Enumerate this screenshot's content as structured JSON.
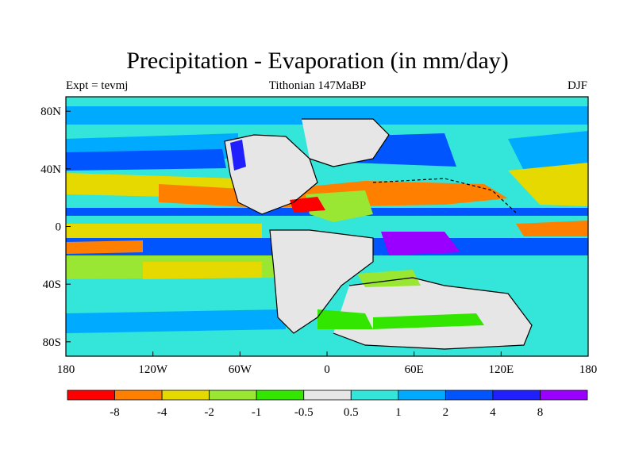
{
  "title": "Precipitation - Evaporation (in mm/day)",
  "left_label": "Expt = tevmj",
  "center_label": "Tithonian 147MaBP",
  "right_label": "DJF",
  "map": {
    "lon_range": [
      -180,
      180
    ],
    "lat_range": [
      -90,
      90
    ],
    "x_ticks": [
      {
        "lon": -180,
        "label": "180"
      },
      {
        "lon": -120,
        "label": "120W"
      },
      {
        "lon": -60,
        "label": "60W"
      },
      {
        "lon": 0,
        "label": "0"
      },
      {
        "lon": 60,
        "label": "60E"
      },
      {
        "lon": 120,
        "label": "120E"
      },
      {
        "lon": 180,
        "label": "180"
      }
    ],
    "y_ticks": [
      {
        "lat": 80,
        "label": "80N"
      },
      {
        "lat": 40,
        "label": "40N"
      },
      {
        "lat": 0,
        "label": "0"
      },
      {
        "lat": -40,
        "label": "40S"
      },
      {
        "lat": -80,
        "label": "80S"
      }
    ]
  },
  "colorbar": {
    "colors": [
      "#ff0000",
      "#ff8000",
      "#e6d900",
      "#99e633",
      "#33e600",
      "#e6e6e6",
      "#33e6d9",
      "#00aaff",
      "#0055ff",
      "#2020ff",
      "#9900ff"
    ],
    "labels": [
      "-8",
      "-4",
      "-2",
      "-1",
      "-0.5",
      "0.5",
      "1",
      "2",
      "4",
      "8"
    ]
  }
}
